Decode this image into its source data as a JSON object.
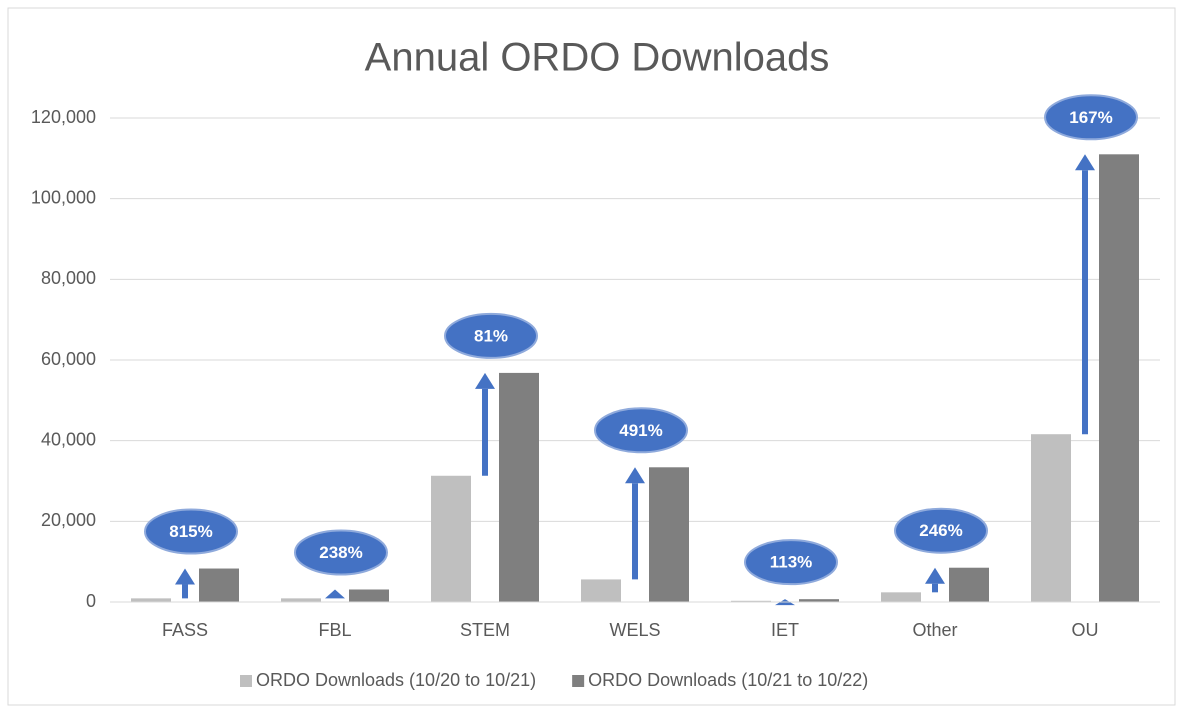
{
  "chart_data": {
    "type": "bar",
    "title": "Annual ORDO Downloads",
    "categories": [
      "FASS",
      "FBL",
      "STEM",
      "WELS",
      "IET",
      "Other",
      "OU"
    ],
    "series": [
      {
        "name": "ORDO Downloads (10/20 to 10/21)",
        "color": "#bfbfbf",
        "values": [
          900,
          900,
          31300,
          5600,
          300,
          2400,
          41600
        ]
      },
      {
        "name": "ORDO Downloads (10/21 to 10/22)",
        "color": "#7f7f7f",
        "values": [
          8300,
          3100,
          56800,
          33400,
          700,
          8500,
          111000
        ]
      }
    ],
    "annotations": [
      "815%",
      "238%",
      "81%",
      "491%",
      "113%",
      "246%",
      "167%"
    ],
    "ylim": [
      0,
      120000
    ],
    "yticks": [
      0,
      {
        "value": 20000,
        "label": "20,000"
      },
      {
        "value": 40000,
        "label": "40,000"
      },
      {
        "value": 60000,
        "label": "60,000"
      },
      {
        "value": 80000,
        "label": "80,000"
      },
      {
        "value": 100000,
        "label": "100,000"
      },
      {
        "value": 120000,
        "label": "120,000"
      }
    ],
    "grid": true,
    "legend": "bottom"
  }
}
